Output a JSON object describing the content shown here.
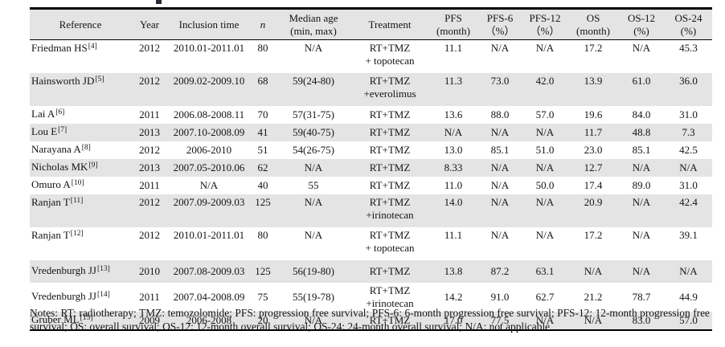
{
  "table": {
    "columns": [
      {
        "id": "reference",
        "line1": "Reference"
      },
      {
        "id": "year",
        "line1": "Year"
      },
      {
        "id": "inclusion",
        "line1": "Inclusion time"
      },
      {
        "id": "n",
        "line1": "n"
      },
      {
        "id": "age",
        "line1": "Median age",
        "line2": "(min, max)"
      },
      {
        "id": "treatment",
        "line1": "Treatment"
      },
      {
        "id": "pfs",
        "line1": "PFS",
        "line2": "(month)"
      },
      {
        "id": "pfs6",
        "line1": "PFS-6",
        "line2": "（%）"
      },
      {
        "id": "pfs12",
        "line1": "PFS-12",
        "line2": "（%）"
      },
      {
        "id": "os",
        "line1": "OS",
        "line2": "(month)"
      },
      {
        "id": "os12",
        "line1": "OS-12",
        "line2": "(%)"
      },
      {
        "id": "os24",
        "line1": "OS-24",
        "line2": "(%)"
      }
    ],
    "rows": [
      {
        "reference": "Friedman HS",
        "sup": "[4]",
        "year": "2012",
        "inclusion": "2010.01-2011.01",
        "n": "80",
        "age": "N/A",
        "treatment": [
          "RT+TMZ",
          "+ topotecan"
        ],
        "pfs": "11.1",
        "pfs6": "N/A",
        "pfs12": "N/A",
        "os": "17.2",
        "os12": "N/A",
        "os24": "45.3",
        "layout": "double"
      },
      {
        "reference": "Hainsworth JD",
        "sup": "[5]",
        "year": "2012",
        "inclusion": "2009.02-2009.10",
        "n": "68",
        "age": "59(24-80)",
        "treatment": [
          "RT+TMZ",
          "+everolimus"
        ],
        "pfs": "11.3",
        "pfs6": "73.0",
        "pfs12": "42.0",
        "os": "13.9",
        "os12": "61.0",
        "os24": "36.0",
        "layout": "double"
      },
      {
        "reference": "Lai A",
        "sup": "[6]",
        "year": "2011",
        "inclusion": "2006.08-2008.11",
        "n": "70",
        "age": "57(31-75)",
        "treatment": [
          "RT+TMZ"
        ],
        "pfs": "13.6",
        "pfs6": "88.0",
        "pfs12": "57.0",
        "os": "19.6",
        "os12": "84.0",
        "os24": "31.0",
        "layout": "single"
      },
      {
        "reference": "Lou E",
        "sup": "[7]",
        "year": "2013",
        "inclusion": "2007.10-2008.09",
        "n": "41",
        "age": "59(40-75)",
        "treatment": [
          "RT+TMZ"
        ],
        "pfs": "N/A",
        "pfs6": "N/A",
        "pfs12": "N/A",
        "os": "11.7",
        "os12": "48.8",
        "os24": "7.3",
        "layout": "single"
      },
      {
        "reference": "Narayana A",
        "sup": "[8]",
        "year": "2012",
        "inclusion": "2006-2010",
        "n": "51",
        "age": "54(26-75)",
        "treatment": [
          "RT+TMZ"
        ],
        "pfs": "13.0",
        "pfs6": "85.1",
        "pfs12": "51.0",
        "os": "23.0",
        "os12": "85.1",
        "os24": "42.5",
        "layout": "single"
      },
      {
        "reference": "Nicholas MK",
        "sup": "[9]",
        "year": "2013",
        "inclusion": "2007.05-2010.06",
        "n": "62",
        "age": "N/A",
        "treatment": [
          "RT+TMZ"
        ],
        "pfs": "8.33",
        "pfs6": "N/A",
        "pfs12": "N/A",
        "os": "12.7",
        "os12": "N/A",
        "os24": "N/A",
        "layout": "single"
      },
      {
        "reference": "Omuro A",
        "sup": "[10]",
        "year": "2011",
        "inclusion": "N/A",
        "n": "40",
        "age": "55",
        "treatment": [
          "RT+TMZ"
        ],
        "pfs": "11.0",
        "pfs6": "N/A",
        "pfs12": "50.0",
        "os": "17.4",
        "os12": "89.0",
        "os24": "31.0",
        "layout": "single"
      },
      {
        "reference": "Ranjan T",
        "sup": "[11]",
        "year": "2012",
        "inclusion": "2007.09-2009.03",
        "n": "125",
        "age": "N/A",
        "treatment": [
          "RT+TMZ",
          "+irinotecan"
        ],
        "pfs": "14.0",
        "pfs6": "N/A",
        "pfs12": "N/A",
        "os": "20.9",
        "os12": "N/A",
        "os24": "42.4",
        "layout": "double"
      },
      {
        "reference": "Ranjan T",
        "sup": "[12]",
        "year": "2012",
        "inclusion": "2010.01-2011.01",
        "n": "80",
        "age": "N/A",
        "treatment": [
          "RT+TMZ",
          "+ topotecan"
        ],
        "pfs": "11.1",
        "pfs6": "N/A",
        "pfs12": "N/A",
        "os": "17.2",
        "os12": "N/A",
        "os24": "39.1",
        "layout": "double"
      },
      {
        "reference": "Vredenburgh JJ",
        "sup": "[13]",
        "year": "2010",
        "inclusion": "2007.08-2009.03",
        "n": "125",
        "age": "56(19-80)",
        "treatment": [
          "RT+TMZ"
        ],
        "pfs": "13.8",
        "pfs6": "87.2",
        "pfs12": "63.1",
        "os": "N/A",
        "os12": "N/A",
        "os24": "N/A",
        "layout": "single-pad"
      },
      {
        "reference": "Vredenburgh JJ",
        "sup": "[14]",
        "year": "2011",
        "inclusion": "2007.04-2008.09",
        "n": "75",
        "age": "55(19-78)",
        "treatment": [
          "RT+TMZ",
          "+irinotecan"
        ],
        "pfs": "14.2",
        "pfs6": "91.0",
        "pfs12": "62.7",
        "os": "21.2",
        "os12": "78.7",
        "os24": "44.9",
        "layout": "double-middle"
      },
      {
        "reference": "Gruber ML",
        "sup": "[15]",
        "year": "2009",
        "inclusion": "2006-2008",
        "n": "20",
        "age": "N/A",
        "treatment": [
          "RT+TMZ"
        ],
        "pfs": "17.0",
        "pfs6": "77.5",
        "pfs12": "N/A",
        "os": "N/A",
        "os12": "83.0",
        "os24": "57.0",
        "layout": "single"
      }
    ],
    "zebra_color": "#e4e4e4"
  },
  "notes": "Notes: RT: radiotherapy; TMZ: temozolomide; PFS: progression free survival; PFS-6: 6-month progression free survival; PFS-12: 12-month progression free survival; OS: overall survival; OS-12: 12-month overall survival; OS-24: 24-month overall survival; N/A: not applicable"
}
